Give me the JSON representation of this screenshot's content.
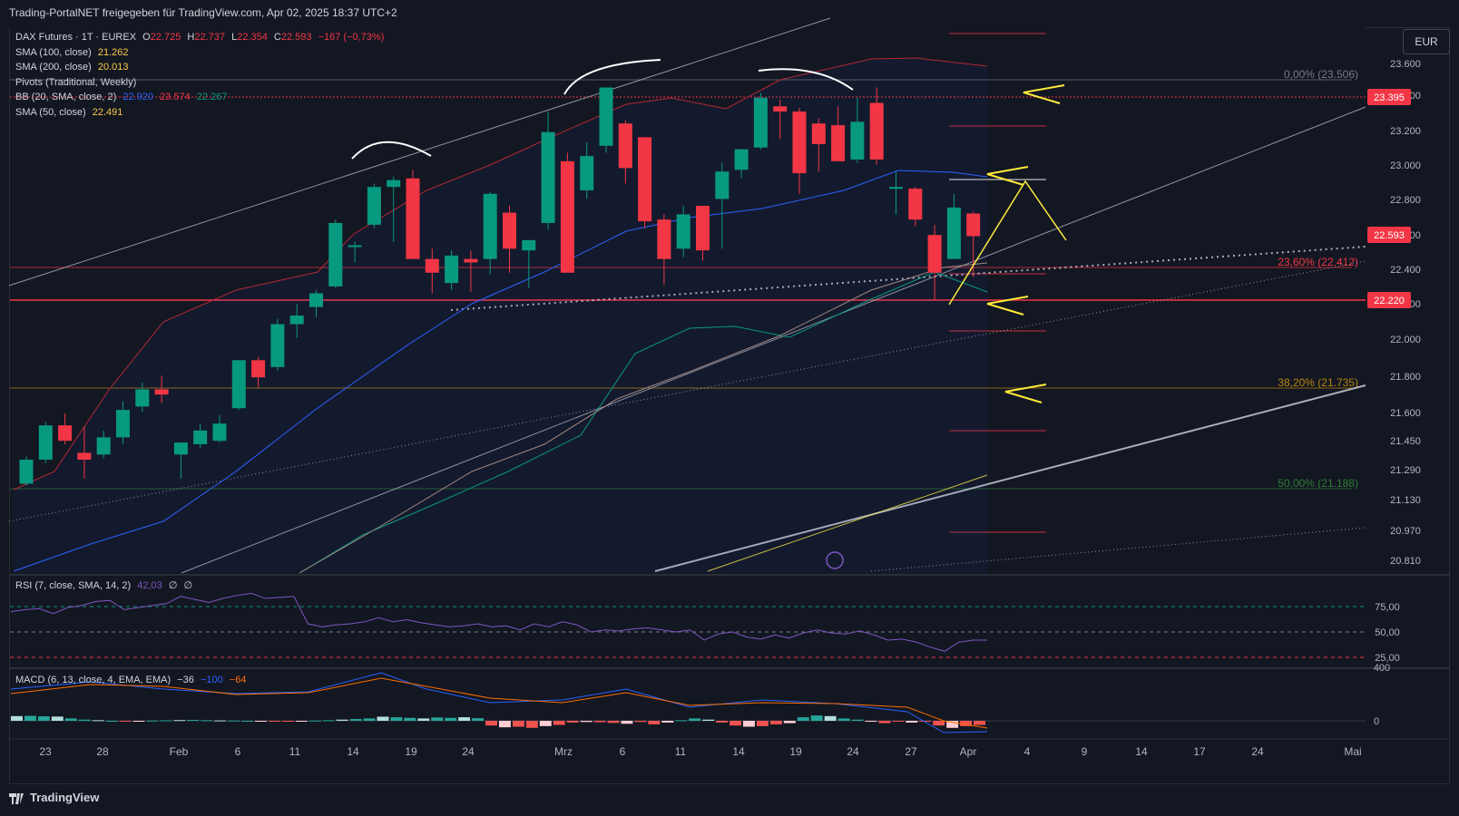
{
  "header": {
    "publisher_line": "Trading-PortalNET freigegeben für TradingView.com, Apr 02, 2025 18:37 UTC+2",
    "currency": "EUR",
    "brand": "TradingView"
  },
  "legend": {
    "symbol": "DAX Futures · 1T · EUREX",
    "ohlc": {
      "o_label": "O",
      "o": "22.725",
      "h_label": "H",
      "h": "22.737",
      "l_label": "L",
      "l": "22.354",
      "c_label": "C",
      "c": "22.593",
      "change": "−167 (−0,73%)"
    },
    "sma100": {
      "label": "SMA (100, close)",
      "value": "21.262"
    },
    "sma200": {
      "label": "SMA (200, close)",
      "value": "20.013"
    },
    "pivots": {
      "label": "Pivots (Traditional, Weekly)"
    },
    "bb": {
      "label": "BB (20, SMA, close, 2)",
      "basis": "22.920",
      "upper": "23.574",
      "lower": "22.267"
    },
    "sma50": {
      "label": "SMA (50, close)",
      "value": "22.491"
    }
  },
  "rsi_legend": {
    "label": "RSI (7, close, SMA, 14, 2)",
    "value": "42,03",
    "extra1": "∅",
    "extra2": "∅"
  },
  "macd_legend": {
    "label": "MACD (6, 13, close, 4, EMA, EMA)",
    "hist": "−36",
    "macd": "−100",
    "signal": "−64"
  },
  "colors": {
    "bg": "#131722",
    "up": "#089981",
    "down": "#f23645",
    "sma50": "#f7c948",
    "bb_basis": "#2962ff",
    "bb_upper": "#b22833",
    "bb_lower": "#089981",
    "sma100": "#9c27b0",
    "macd": "#2962ff",
    "signal": "#ff6d00",
    "rsi": "#7e57c2",
    "annot": "#ffeb3b"
  },
  "chart_data": {
    "type": "candlestick",
    "x_ticks": [
      "23",
      "28",
      "Feb",
      "6",
      "11",
      "14",
      "19",
      "24",
      "Mrz",
      "6",
      "11",
      "14",
      "19",
      "24",
      "27",
      "Apr",
      "4",
      "9",
      "14",
      "17",
      "24",
      "Mai"
    ],
    "y_ticks": [
      "23.600",
      "23.400",
      "23.200",
      "23.000",
      "22.800",
      "22.600",
      "22.400",
      "22.200",
      "22.000",
      "21.800",
      "21.600",
      "21.450",
      "21.290",
      "21.130",
      "20.970",
      "20.810"
    ],
    "price_labels": [
      {
        "value": "23.395",
        "color": "#f23645"
      },
      {
        "value": "22.593",
        "color": "#f23645"
      },
      {
        "value": "22.220",
        "color": "#f23645"
      }
    ],
    "fib_levels": [
      {
        "label": "0,00% (23.506)",
        "value": 23506
      },
      {
        "label": "23,60% (22.412)",
        "value": 22412
      },
      {
        "label": "38,20% (21.735)",
        "value": 21735
      },
      {
        "label": "50,00% (21.188)",
        "value": 21188
      }
    ],
    "horizontal_lines": [
      {
        "value": 22412,
        "color": "#f23645"
      },
      {
        "value": 22220,
        "color": "#f23645"
      },
      {
        "value": 23395,
        "color": "#f23645"
      }
    ],
    "pivot_levels": [
      23740,
      23220,
      22920,
      22360,
      22050,
      21480,
      20970
    ],
    "candles": [
      {
        "o": 21150,
        "h": 21310,
        "l": 21140,
        "c": 21290
      },
      {
        "o": 21290,
        "h": 21510,
        "l": 21270,
        "c": 21490
      },
      {
        "o": 21490,
        "h": 21560,
        "l": 21380,
        "c": 21400
      },
      {
        "o": 21330,
        "h": 21480,
        "l": 21180,
        "c": 21290
      },
      {
        "o": 21320,
        "h": 21460,
        "l": 21300,
        "c": 21420
      },
      {
        "o": 21420,
        "h": 21630,
        "l": 21380,
        "c": 21580
      },
      {
        "o": 21600,
        "h": 21740,
        "l": 21570,
        "c": 21700
      },
      {
        "o": 21700,
        "h": 21780,
        "l": 21620,
        "c": 21670
      },
      {
        "o": 21320,
        "h": 21380,
        "l": 21180,
        "c": 21390
      },
      {
        "o": 21380,
        "h": 21500,
        "l": 21360,
        "c": 21460
      },
      {
        "o": 21400,
        "h": 21550,
        "l": 21390,
        "c": 21500
      },
      {
        "o": 21590,
        "h": 21870,
        "l": 21580,
        "c": 21870
      },
      {
        "o": 21870,
        "h": 21890,
        "l": 21710,
        "c": 21770
      },
      {
        "o": 21830,
        "h": 22110,
        "l": 21810,
        "c": 22080
      },
      {
        "o": 22080,
        "h": 22200,
        "l": 22000,
        "c": 22130
      },
      {
        "o": 22180,
        "h": 22280,
        "l": 22120,
        "c": 22260
      },
      {
        "o": 22300,
        "h": 22690,
        "l": 22290,
        "c": 22670
      },
      {
        "o": 22530,
        "h": 22560,
        "l": 22440,
        "c": 22540
      },
      {
        "o": 22660,
        "h": 22900,
        "l": 22640,
        "c": 22880
      },
      {
        "o": 22880,
        "h": 22940,
        "l": 22560,
        "c": 22920
      },
      {
        "o": 22930,
        "h": 22980,
        "l": 22460,
        "c": 22460
      },
      {
        "o": 22460,
        "h": 22520,
        "l": 22260,
        "c": 22380
      },
      {
        "o": 22320,
        "h": 22510,
        "l": 22280,
        "c": 22480
      },
      {
        "o": 22460,
        "h": 22510,
        "l": 22270,
        "c": 22440
      },
      {
        "o": 22460,
        "h": 22850,
        "l": 22370,
        "c": 22840
      },
      {
        "o": 22730,
        "h": 22770,
        "l": 22380,
        "c": 22520
      },
      {
        "o": 22510,
        "h": 22560,
        "l": 22290,
        "c": 22570
      },
      {
        "o": 22670,
        "h": 23320,
        "l": 22630,
        "c": 23200
      },
      {
        "o": 23030,
        "h": 23080,
        "l": 22390,
        "c": 22380
      },
      {
        "o": 22860,
        "h": 23140,
        "l": 22810,
        "c": 23060
      },
      {
        "o": 23120,
        "h": 23450,
        "l": 23080,
        "c": 23460
      },
      {
        "o": 23250,
        "h": 23270,
        "l": 22900,
        "c": 22990
      },
      {
        "o": 23170,
        "h": 23170,
        "l": 22640,
        "c": 22680
      },
      {
        "o": 22690,
        "h": 22720,
        "l": 22310,
        "c": 22460
      },
      {
        "o": 22520,
        "h": 22770,
        "l": 22470,
        "c": 22720
      },
      {
        "o": 22770,
        "h": 22770,
        "l": 22450,
        "c": 22510
      },
      {
        "o": 22810,
        "h": 23020,
        "l": 22520,
        "c": 22970
      },
      {
        "o": 22980,
        "h": 23100,
        "l": 22930,
        "c": 23100
      },
      {
        "o": 23110,
        "h": 23430,
        "l": 23100,
        "c": 23400
      },
      {
        "o": 23350,
        "h": 23390,
        "l": 23160,
        "c": 23320
      },
      {
        "o": 23320,
        "h": 23340,
        "l": 22840,
        "c": 22960
      },
      {
        "o": 23250,
        "h": 23280,
        "l": 22970,
        "c": 23130
      },
      {
        "o": 23240,
        "h": 23350,
        "l": 23040,
        "c": 23030
      },
      {
        "o": 23040,
        "h": 23400,
        "l": 23020,
        "c": 23260
      },
      {
        "o": 23370,
        "h": 23460,
        "l": 23010,
        "c": 23040
      },
      {
        "o": 22880,
        "h": 22970,
        "l": 22720,
        "c": 22880
      },
      {
        "o": 22870,
        "h": 22880,
        "l": 22650,
        "c": 22690
      },
      {
        "o": 22600,
        "h": 22660,
        "l": 22220,
        "c": 22380
      },
      {
        "o": 22460,
        "h": 22840,
        "l": 22460,
        "c": 22760
      },
      {
        "o": 22725,
        "h": 22737,
        "l": 22354,
        "c": 22593
      }
    ],
    "rsi": [
      70,
      72,
      73,
      68,
      74,
      76,
      80,
      81,
      72,
      74,
      76,
      78,
      85,
      82,
      79,
      83,
      86,
      88,
      83,
      84,
      85,
      58,
      55,
      57,
      58,
      60,
      64,
      60,
      62,
      59,
      57,
      55,
      56,
      58,
      55,
      56,
      52,
      58,
      55,
      60,
      57,
      50,
      52,
      51,
      53,
      54,
      52,
      50,
      52,
      42,
      48,
      50,
      45,
      43,
      47,
      44,
      49,
      52,
      49,
      48,
      51,
      47,
      42,
      43,
      40,
      35,
      31,
      40,
      42,
      42
    ],
    "rsi_levels": {
      "upper": "75,00",
      "mid": "50,00",
      "lower": "25,00"
    },
    "macd": {
      "ticks": [
        "400",
        "0"
      ],
      "hist": [
        40,
        42,
        38,
        36,
        20,
        10,
        5,
        0,
        -5,
        -3,
        2,
        4,
        6,
        8,
        5,
        3,
        2,
        0,
        -2,
        -5,
        -3,
        -1,
        2,
        5,
        10,
        15,
        20,
        35,
        30,
        25,
        20,
        28,
        25,
        30,
        22,
        -40,
        -55,
        -50,
        -60,
        -45,
        -35,
        -15,
        -10,
        -12,
        -18,
        -25,
        -10,
        -30,
        -15,
        5,
        20,
        10,
        -15,
        -40,
        -50,
        -45,
        -30,
        -20,
        30,
        45,
        40,
        20,
        10,
        -5,
        -20,
        -5,
        -15,
        -8,
        -40,
        -60,
        -45,
        -36
      ]
    }
  }
}
